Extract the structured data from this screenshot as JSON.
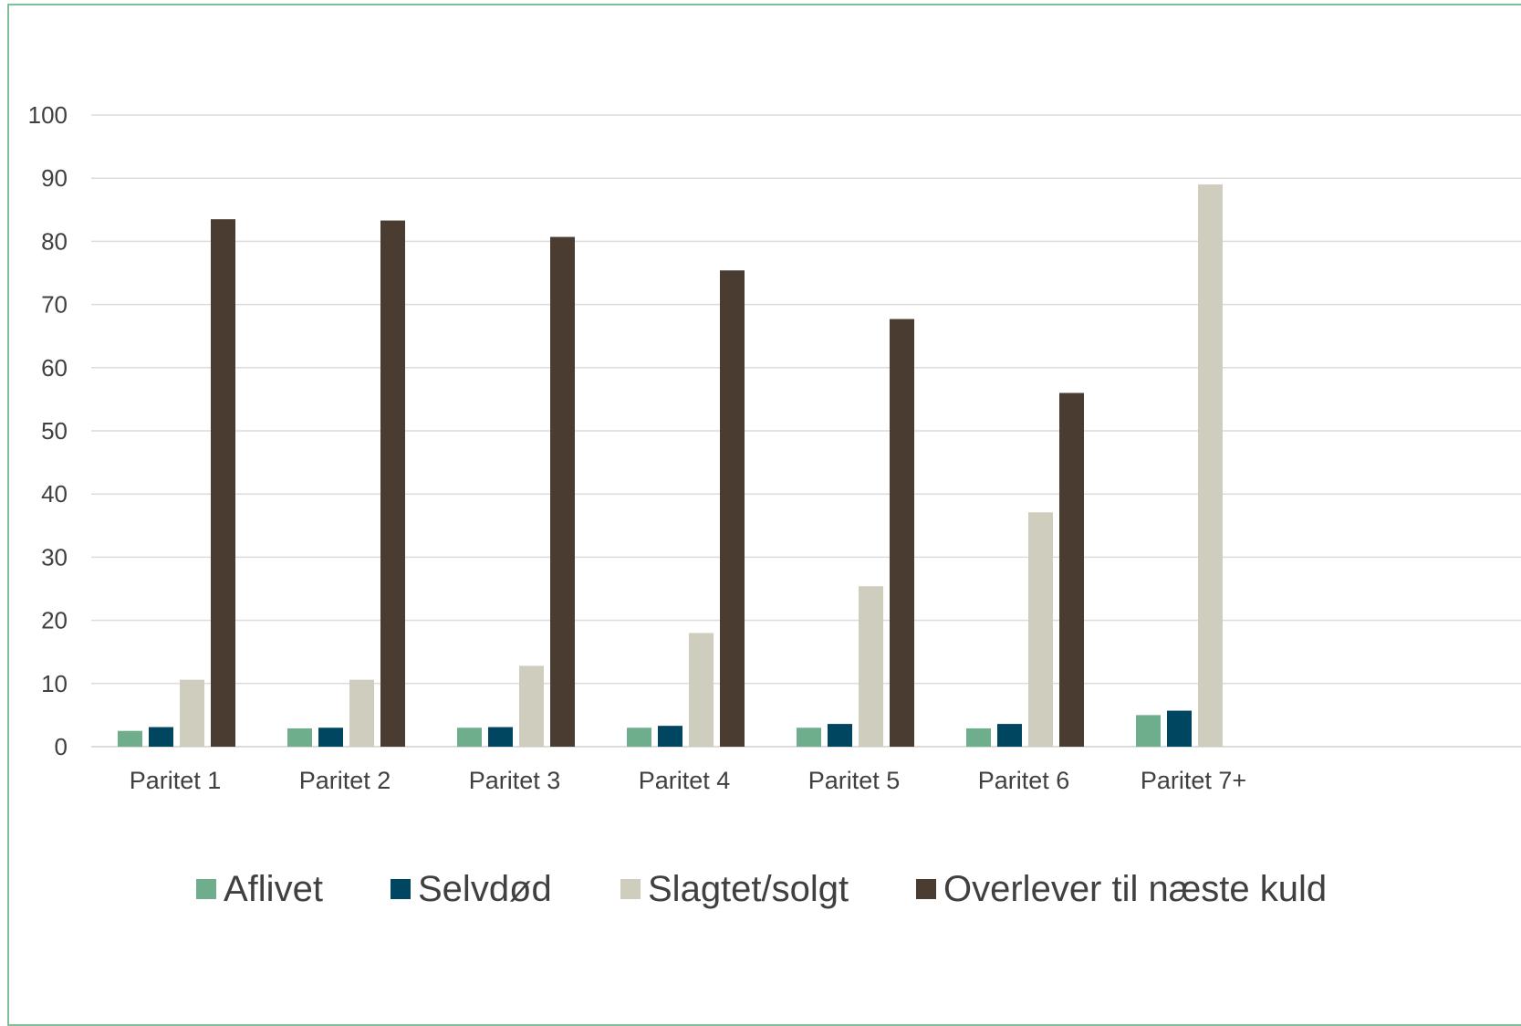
{
  "chart_data": {
    "type": "bar",
    "title": "",
    "xlabel": "",
    "ylabel": "",
    "ylim": [
      0,
      100
    ],
    "yticks": [
      "0",
      "10",
      "20",
      "30",
      "40",
      "50",
      "60",
      "70",
      "80",
      "90",
      "100"
    ],
    "grid": true,
    "legend_position": "bottom",
    "categories": [
      "Paritet 1",
      "Paritet 2",
      "Paritet 3",
      "Paritet 4",
      "Paritet 5",
      "Paritet 6",
      "Paritet 7+"
    ],
    "series": [
      {
        "name": "Aflivet",
        "color": "#6fae8c",
        "values": [
          2.5,
          2.9,
          3.0,
          3.0,
          3.0,
          2.9,
          5.0
        ]
      },
      {
        "name": "Selvdød",
        "color": "#004660",
        "values": [
          3.1,
          3.0,
          3.1,
          3.3,
          3.6,
          3.6,
          5.7
        ]
      },
      {
        "name": "Slagtet/solgt",
        "color": "#cfcdbd",
        "values": [
          10.6,
          10.6,
          12.8,
          18.0,
          25.4,
          37.1,
          89.0
        ]
      },
      {
        "name": "Overlever til næste kuld",
        "color": "#4a3c30",
        "values": [
          83.5,
          83.3,
          80.7,
          75.4,
          67.7,
          56.0,
          null
        ]
      }
    ]
  }
}
